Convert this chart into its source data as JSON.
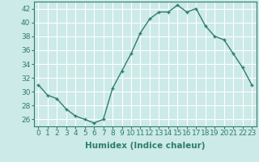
{
  "x": [
    0,
    1,
    2,
    3,
    4,
    5,
    6,
    7,
    8,
    9,
    10,
    11,
    12,
    13,
    14,
    15,
    16,
    17,
    18,
    19,
    20,
    21,
    22,
    23
  ],
  "y": [
    31,
    29.5,
    29,
    27.5,
    26.5,
    26,
    25.5,
    26,
    30.5,
    33,
    35.5,
    38.5,
    40.5,
    41.5,
    41.5,
    42.5,
    41.5,
    42,
    39.5,
    38,
    37.5,
    35.5,
    33.5,
    31
  ],
  "line_color": "#2e7d6e",
  "marker": "+",
  "marker_size": 3,
  "marker_linewidth": 1.0,
  "background_color": "#cceae7",
  "grid_color": "#ffffff",
  "xlabel": "Humidex (Indice chaleur)",
  "ylabel_ticks": [
    26,
    28,
    30,
    32,
    34,
    36,
    38,
    40,
    42
  ],
  "ylim": [
    25.0,
    43.0
  ],
  "xlim": [
    -0.5,
    23.5
  ],
  "tick_label_fontsize": 6.5,
  "xlabel_fontsize": 7.5,
  "linewidth": 1.0
}
